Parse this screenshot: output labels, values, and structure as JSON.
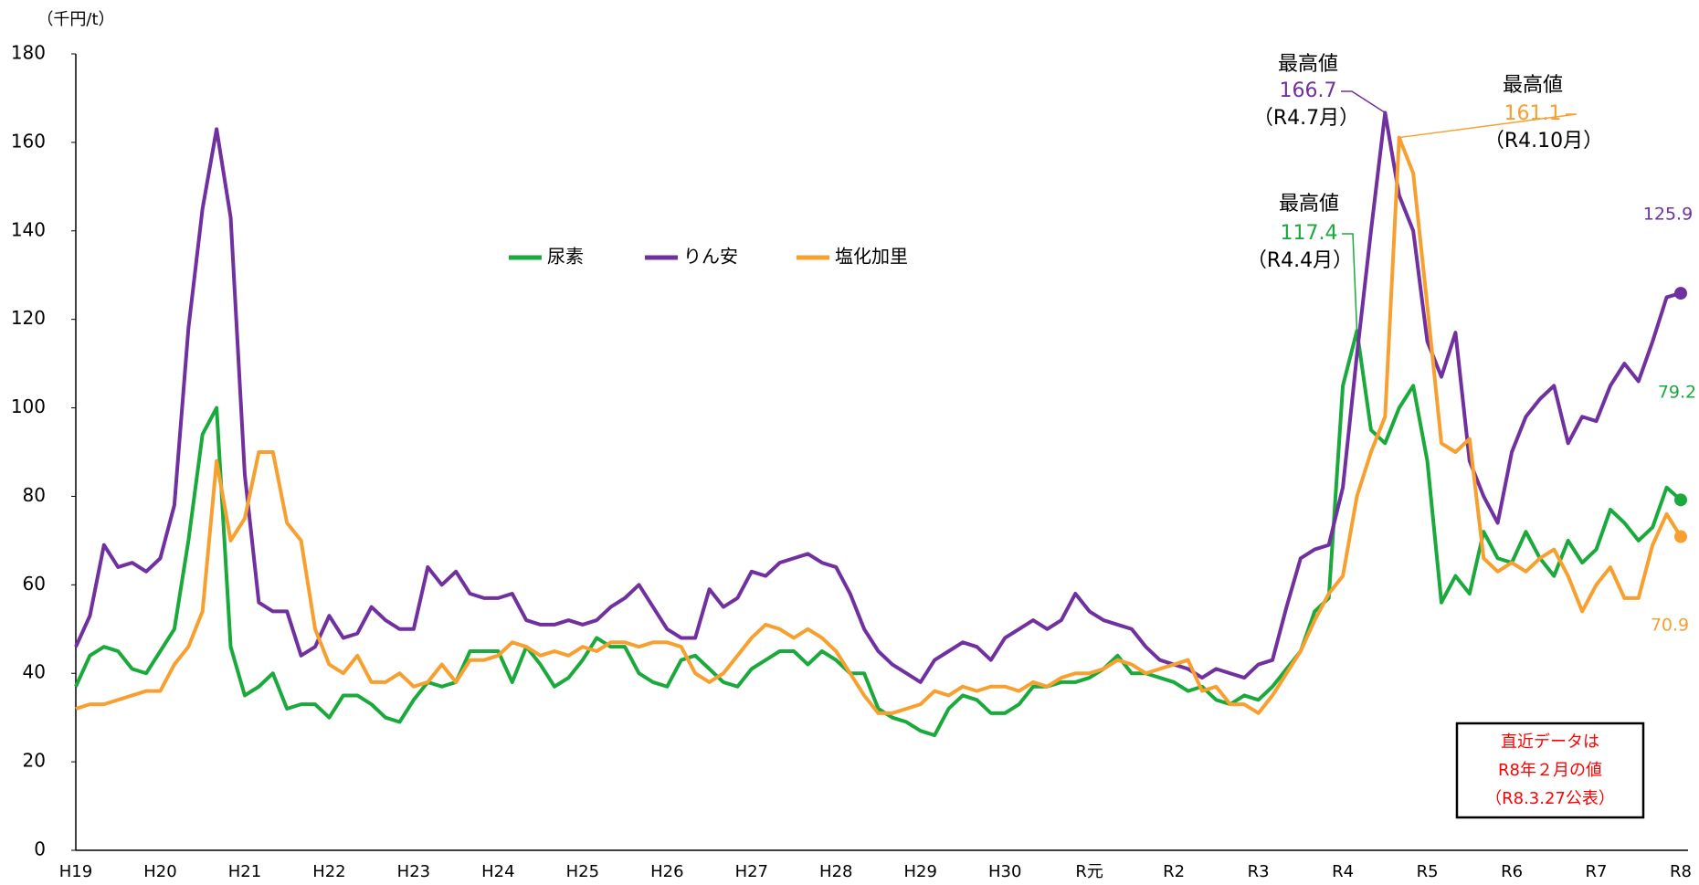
{
  "chart_data": {
    "type": "line",
    "y_unit": "（千円/t）",
    "categories": [
      "H19",
      null,
      null,
      null,
      null,
      null,
      "H20",
      null,
      null,
      null,
      null,
      null,
      "H21",
      null,
      null,
      null,
      null,
      null,
      "H22",
      null,
      null,
      null,
      null,
      null,
      "H23",
      null,
      null,
      null,
      null,
      null,
      "H24",
      null,
      null,
      null,
      null,
      null,
      "H25",
      null,
      null,
      null,
      null,
      null,
      "H26",
      null,
      null,
      null,
      null,
      null,
      "H27",
      null,
      null,
      null,
      null,
      null,
      "H28",
      null,
      null,
      null,
      null,
      null,
      "H29",
      null,
      null,
      null,
      null,
      null,
      "H30",
      null,
      null,
      null,
      null,
      null,
      "R元",
      null,
      null,
      null,
      null,
      null,
      "R2",
      null,
      null,
      null,
      null,
      null,
      "R3",
      null,
      null,
      null,
      null,
      null,
      "R4",
      null,
      null,
      null,
      null,
      null,
      "R5",
      null,
      null,
      null,
      null,
      null,
      "R6",
      null,
      null,
      null,
      null,
      null,
      "R7",
      null,
      null,
      null,
      null,
      null,
      "R8"
    ],
    "series": [
      {
        "name": "尿素",
        "color": "#1aaa3c",
        "peak_label": "最高値",
        "peak_date": "（R4.4月）",
        "values": [
          37,
          44,
          46,
          45,
          41,
          40,
          45,
          50,
          70,
          94,
          100,
          46,
          35,
          37,
          40,
          32,
          33,
          33,
          30,
          35,
          35,
          33,
          30,
          29,
          34,
          38,
          37,
          38,
          45,
          45,
          45,
          38,
          46,
          42,
          37,
          39,
          43,
          48,
          46,
          46,
          40,
          38,
          37,
          43,
          44,
          41,
          38,
          37,
          41,
          43,
          45,
          45,
          42,
          45,
          43,
          40,
          40,
          32,
          30,
          29,
          27,
          26,
          32,
          35,
          34,
          31,
          31,
          33,
          37,
          37,
          38,
          38,
          39,
          41,
          44,
          40,
          40,
          39,
          38,
          36,
          37,
          34,
          33,
          35,
          34,
          37,
          41,
          45,
          54,
          57,
          105,
          117.4,
          95,
          92,
          100,
          105,
          88,
          56,
          62,
          58,
          72,
          66,
          65,
          72,
          66,
          62,
          70,
          65,
          68,
          77,
          74,
          70,
          73,
          82,
          79.2
        ]
      },
      {
        "name": "りん安",
        "color": "#7030a0",
        "peak_label": "最高値",
        "peak_date": "（R4.7月）",
        "values": [
          46,
          53,
          69,
          64,
          65,
          63,
          66,
          78,
          118,
          145,
          163,
          143,
          85,
          56,
          54,
          54,
          44,
          46,
          53,
          48,
          49,
          55,
          52,
          50,
          50,
          64,
          60,
          63,
          58,
          57,
          57,
          58,
          52,
          51,
          51,
          52,
          51,
          52,
          55,
          57,
          60,
          55,
          50,
          48,
          48,
          59,
          55,
          57,
          63,
          62,
          65,
          66,
          67,
          65,
          64,
          58,
          50,
          45,
          42,
          40,
          38,
          43,
          45,
          47,
          46,
          43,
          48,
          50,
          52,
          50,
          52,
          58,
          54,
          52,
          51,
          50,
          46,
          43,
          42,
          41,
          39,
          41,
          40,
          39,
          42,
          43,
          55,
          66,
          68,
          69,
          82,
          112,
          140,
          166.7,
          148,
          140,
          115,
          107,
          117,
          88,
          80,
          74,
          90,
          98,
          102,
          105,
          92,
          98,
          97,
          105,
          110,
          106,
          115,
          125,
          125.9
        ]
      },
      {
        "name": "塩化加里",
        "color": "#f7a030",
        "peak_label": "最高値",
        "peak_date": "（R4.10月）",
        "values": [
          32,
          33,
          33,
          34,
          35,
          36,
          36,
          42,
          46,
          54,
          88,
          70,
          75,
          90,
          90,
          74,
          70,
          50,
          42,
          40,
          44,
          38,
          38,
          40,
          37,
          38,
          42,
          38,
          43,
          43,
          44,
          47,
          46,
          44,
          45,
          44,
          46,
          45,
          47,
          47,
          46,
          47,
          47,
          46,
          40,
          38,
          40,
          44,
          48,
          51,
          50,
          48,
          50,
          48,
          45,
          40,
          35,
          31,
          31,
          32,
          33,
          36,
          35,
          37,
          36,
          37,
          37,
          36,
          38,
          37,
          39,
          40,
          40,
          41,
          43,
          42,
          40,
          41,
          42,
          43,
          36,
          37,
          33,
          33,
          31,
          35,
          40,
          45,
          52,
          58,
          62,
          80,
          90,
          98,
          161.1,
          153,
          123,
          92,
          90,
          93,
          66,
          63,
          65,
          63,
          66,
          68,
          62,
          54,
          60,
          64,
          57,
          57,
          69,
          76,
          70.9
        ]
      }
    ],
    "ylim": [
      0,
      180
    ],
    "yticks": [
      0,
      20,
      40,
      60,
      80,
      100,
      120,
      140,
      160,
      180
    ],
    "note": [
      "直近データは",
      "R8年２月の値",
      "（R8.3.27公表）"
    ]
  }
}
